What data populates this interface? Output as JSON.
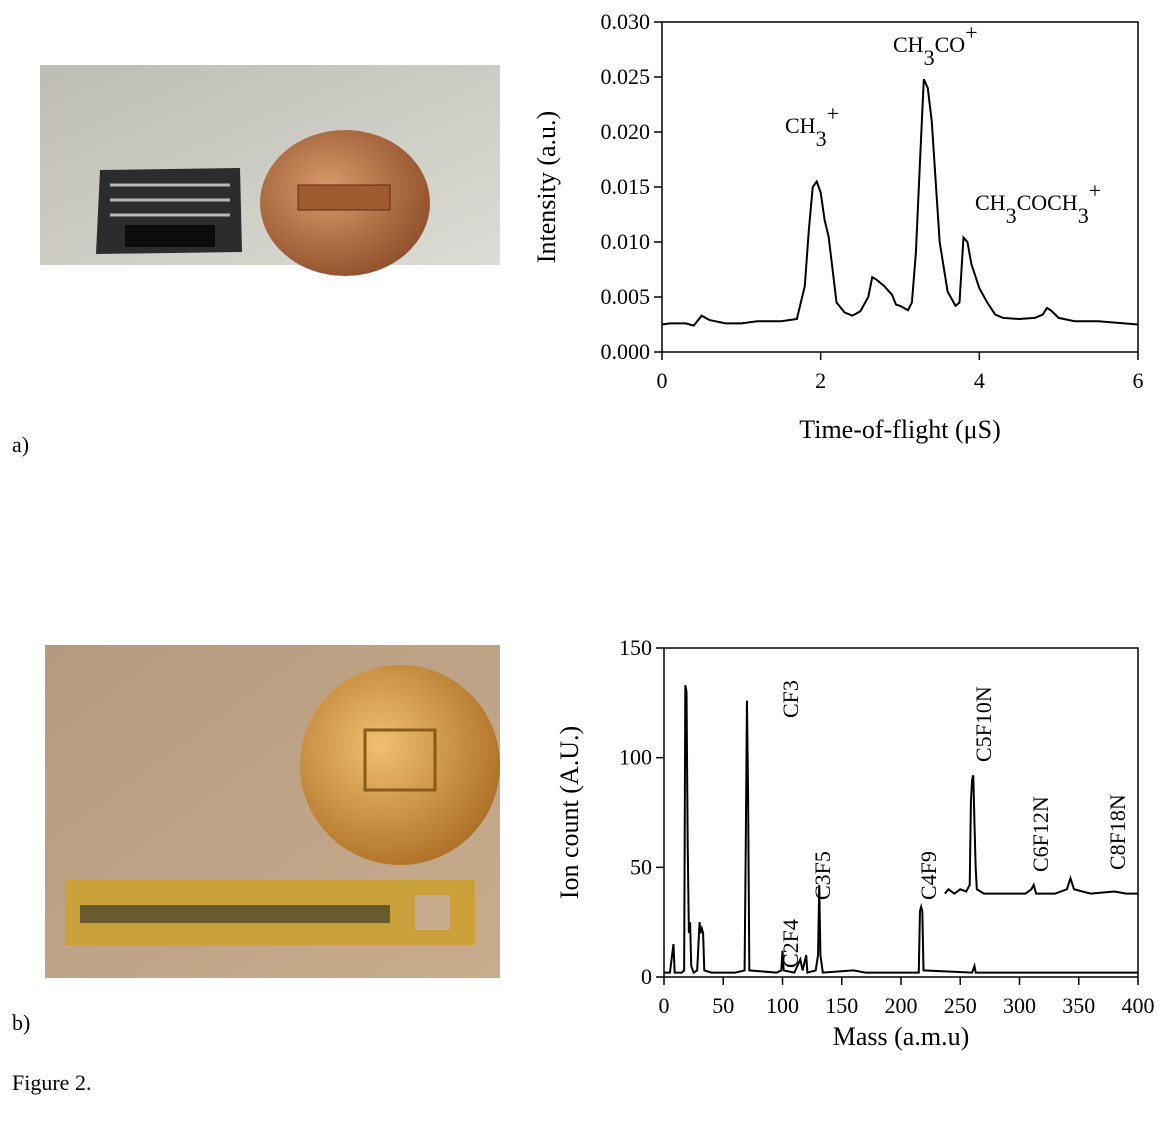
{
  "panel_labels": [
    "a)",
    "b)"
  ],
  "caption": "Figure 2.",
  "chart_data": [
    {
      "type": "line",
      "xlabel": "Time-of-flight (μS)",
      "ylabel": "Intensity (a.u.)",
      "xlim": [
        0,
        6
      ],
      "xticks": [
        0,
        2,
        4,
        6
      ],
      "ylim": [
        0,
        0.03
      ],
      "yticks": [
        {
          "value": 0,
          "label": "0.000"
        },
        {
          "value": 0.005,
          "label": "0.005"
        },
        {
          "value": 0.01,
          "label": "0.010"
        },
        {
          "value": 0.015,
          "label": "0.015"
        },
        {
          "value": 0.02,
          "label": "0.020"
        },
        {
          "value": 0.025,
          "label": "0.025"
        },
        {
          "value": 0.03,
          "label": "0.030"
        }
      ],
      "annotations": [
        [
          {
            "text": "CH"
          },
          {
            "text": "3",
            "sub": true
          },
          {
            "text": "+",
            "sup": true
          }
        ],
        [
          {
            "text": "CH"
          },
          {
            "text": "3",
            "sub": true
          },
          {
            "text": "CO"
          },
          {
            "text": "+",
            "sup": true
          }
        ],
        [
          {
            "text": "CH"
          },
          {
            "text": "3",
            "sub": true
          },
          {
            "text": "COCH"
          },
          {
            "text": "3",
            "sub": true
          },
          {
            "text": "+",
            "sup": true
          }
        ]
      ],
      "series": [
        {
          "color": "#000000",
          "x": [
            0,
            0.1,
            0.3,
            0.4,
            0.5,
            0.6,
            0.8,
            1.0,
            1.2,
            1.5,
            1.7,
            1.8,
            1.85,
            1.9,
            1.95,
            2.0,
            2.05,
            2.1,
            2.2,
            2.3,
            2.4,
            2.5,
            2.6,
            2.65,
            2.7,
            2.8,
            2.9,
            2.95,
            3.0,
            3.1,
            3.15,
            3.2,
            3.25,
            3.3,
            3.35,
            3.4,
            3.5,
            3.6,
            3.7,
            3.75,
            3.8,
            3.85,
            3.9,
            4.0,
            4.1,
            4.2,
            4.3,
            4.5,
            4.7,
            4.8,
            4.85,
            4.9,
            5.0,
            5.2,
            5.5,
            6.0
          ],
          "values": [
            0.0025,
            0.0026,
            0.0026,
            0.0024,
            0.0033,
            0.0029,
            0.0026,
            0.0026,
            0.0028,
            0.0028,
            0.003,
            0.006,
            0.011,
            0.015,
            0.0155,
            0.0145,
            0.012,
            0.0105,
            0.0045,
            0.0036,
            0.0033,
            0.0037,
            0.005,
            0.0068,
            0.0066,
            0.006,
            0.0052,
            0.0043,
            0.0042,
            0.0038,
            0.0045,
            0.009,
            0.017,
            0.0248,
            0.024,
            0.021,
            0.01,
            0.0055,
            0.0042,
            0.0045,
            0.0104,
            0.01,
            0.008,
            0.0058,
            0.0045,
            0.0034,
            0.0031,
            0.003,
            0.0031,
            0.0034,
            0.004,
            0.0038,
            0.0031,
            0.0028,
            0.0028,
            0.0025
          ]
        }
      ]
    },
    {
      "type": "line",
      "xlabel": "Mass (a.m.u)",
      "ylabel": "Ion count (A.U.)",
      "xlim": [
        0,
        400
      ],
      "xticks": [
        0,
        50,
        100,
        150,
        200,
        250,
        300,
        350,
        400
      ],
      "ylim": [
        0,
        150
      ],
      "yticks": [
        0,
        50,
        100,
        150
      ],
      "annotations": [
        "CF3",
        "C2F4",
        "C3F5",
        "C4F9",
        "C5F10N",
        "C6F12N",
        "C8F18N"
      ],
      "series": [
        {
          "color": "#000000",
          "x": [
            0,
            5,
            8,
            9,
            15,
            17,
            18,
            19,
            20,
            21,
            22,
            23,
            25,
            28,
            30,
            31,
            32,
            33,
            34,
            40,
            60,
            68,
            69,
            70,
            71,
            72,
            95,
            99,
            100,
            101,
            110,
            115,
            117,
            120,
            121,
            128,
            130,
            131,
            132,
            134,
            160,
            170,
            200,
            215,
            216,
            217,
            218,
            219,
            260,
            262,
            263,
            350,
            400
          ],
          "values": [
            2,
            2,
            15,
            2,
            2,
            3,
            133,
            130,
            60,
            20,
            25,
            5,
            2,
            3,
            25,
            20,
            22,
            20,
            3,
            2,
            2,
            3,
            60,
            126,
            80,
            3,
            2,
            3,
            12,
            3,
            2,
            8,
            3,
            10,
            2,
            3,
            10,
            42,
            10,
            2,
            3,
            2,
            2,
            2,
            30,
            32,
            30,
            3,
            2,
            5,
            2,
            2,
            2
          ]
        },
        {
          "color": "#000000",
          "x": [
            237,
            240,
            245,
            250,
            255,
            258,
            259,
            260,
            261,
            262,
            263,
            264,
            270,
            290,
            305,
            310,
            312,
            314,
            330,
            340,
            343,
            346,
            360,
            380,
            390,
            400
          ],
          "values": [
            38,
            40,
            38,
            40,
            39,
            42,
            80,
            90,
            92,
            70,
            50,
            40,
            38,
            38,
            38,
            40,
            42,
            38,
            38,
            40,
            45,
            40,
            38,
            39,
            38,
            38
          ]
        }
      ]
    }
  ]
}
